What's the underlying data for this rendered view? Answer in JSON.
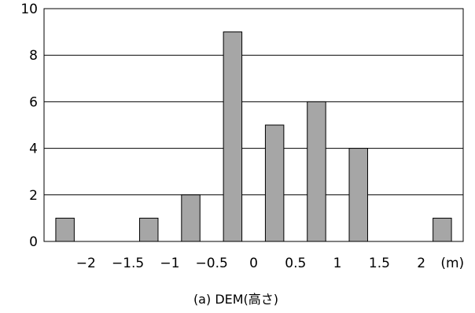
{
  "chart_data": {
    "type": "bar",
    "title": "",
    "caption": "(a) DEM(高さ)",
    "xlabel": "",
    "ylabel": "",
    "x_unit_label": "(m)",
    "bin_centers": [
      -2.25,
      -1.75,
      -1.25,
      -0.75,
      -0.25,
      0.25,
      0.75,
      1.25,
      1.75,
      2.25
    ],
    "values": [
      1,
      0,
      1,
      2,
      9,
      5,
      6,
      4,
      0,
      1
    ],
    "xlim": [
      -2.5,
      2.5
    ],
    "ylim": [
      0,
      10
    ],
    "y_ticks": [
      "0",
      "2",
      "4",
      "6",
      "8",
      "10"
    ],
    "x_ticks": [
      {
        "value": -2,
        "label": "−2"
      },
      {
        "value": -1.5,
        "label": "−1.5"
      },
      {
        "value": -1,
        "label": "−1"
      },
      {
        "value": -0.5,
        "label": "−0.5"
      },
      {
        "value": 0,
        "label": "0"
      },
      {
        "value": 0.5,
        "label": "0.5"
      },
      {
        "value": 1,
        "label": "1"
      },
      {
        "value": 1.5,
        "label": "1.5"
      },
      {
        "value": 2,
        "label": "2"
      }
    ],
    "grid": true,
    "bar_color": "#a6a6a6",
    "bar_edge_color": "#000000"
  }
}
